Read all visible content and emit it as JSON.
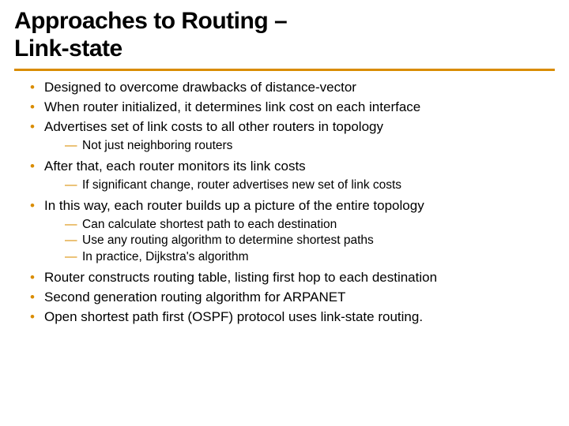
{
  "title_line1": "Approaches to Routing –",
  "title_line2": "Link-state",
  "accent_color": "#d98c00",
  "bullets": {
    "b1": "Designed to overcome drawbacks of distance-vector",
    "b2": "When router initialized, it determines link cost on each interface",
    "b3": "Advertises set of link costs to all other routers in topology",
    "b3_s1": "Not just neighboring routers",
    "b4": "After that, each router monitors its link costs",
    "b4_s1": "If significant change, router advertises new set of link costs",
    "b5": "In this way, each router builds up a picture of the entire topology",
    "b5_s1": "Can calculate shortest path to each destination",
    "b5_s2": "Use any routing algorithm to determine shortest paths",
    "b5_s3": "In practice, Dijkstra's algorithm",
    "b6": "Router constructs routing table, listing first hop to each destination",
    "b7": "Second generation routing algorithm for ARPANET",
    "b8": "Open shortest path first (OSPF) protocol uses link-state routing."
  }
}
